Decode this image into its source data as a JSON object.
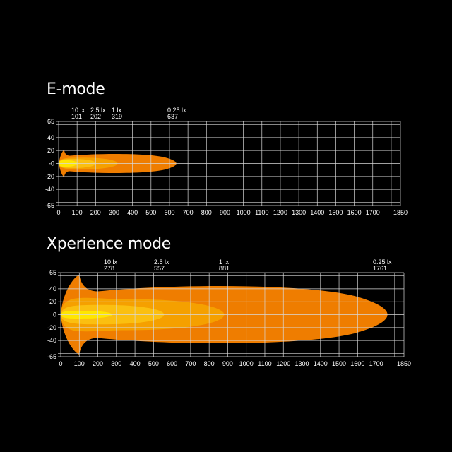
{
  "chart_data": [
    {
      "type": "area",
      "title": "E-mode",
      "xlim": [
        0,
        1850
      ],
      "ylim": [
        -65,
        65
      ],
      "x_ticks": [
        0,
        100,
        200,
        300,
        400,
        500,
        600,
        700,
        800,
        900,
        1000,
        1100,
        1200,
        1300,
        1400,
        1500,
        1600,
        1700,
        1850
      ],
      "y_ticks": [
        65,
        40,
        20,
        0,
        -20,
        -40,
        -65
      ],
      "y_tick_labels": [
        "65",
        "40",
        "20",
        "-0",
        "-20",
        "-40",
        "-65"
      ],
      "grid": true,
      "isolux": [
        {
          "label": "10 lx",
          "reach": "101",
          "value": 101,
          "half_width": 5,
          "color": "#ffe600"
        },
        {
          "label": "2,5 lx",
          "reach": "202",
          "value": 202,
          "half_width": 7,
          "color": "#fbbf10"
        },
        {
          "label": "1 lx",
          "reach": "319",
          "value": 319,
          "half_width": 9,
          "color": "#f5a000"
        },
        {
          "label": "0,25 lx",
          "reach": "637",
          "value": 637,
          "half_width": 16,
          "color": "#ef7d00"
        }
      ]
    },
    {
      "type": "area",
      "title": "Xperience mode",
      "xlim": [
        0,
        1850
      ],
      "ylim": [
        -65,
        65
      ],
      "x_ticks": [
        0,
        100,
        200,
        300,
        400,
        500,
        600,
        700,
        800,
        900,
        1000,
        1100,
        1200,
        1300,
        1400,
        1500,
        1600,
        1700,
        1850
      ],
      "y_ticks": [
        65,
        40,
        20,
        0,
        -20,
        -40,
        -65
      ],
      "y_tick_labels": [
        "65",
        "40",
        "20",
        "0",
        "-20",
        "-40",
        "-65"
      ],
      "grid": true,
      "isolux": [
        {
          "label": "10 lx",
          "reach": "278",
          "value": 278,
          "half_width": 6,
          "color": "#ffe600"
        },
        {
          "label": "2.5 lx",
          "reach": "557",
          "value": 557,
          "half_width": 15,
          "color": "#fbbf10"
        },
        {
          "label": "1 lx",
          "reach": "881",
          "value": 881,
          "half_width": 24,
          "color": "#f5a000"
        },
        {
          "label": "0.25 lx",
          "reach": "1761",
          "value": 1761,
          "half_width": 48,
          "color": "#ef7d00"
        }
      ]
    }
  ]
}
